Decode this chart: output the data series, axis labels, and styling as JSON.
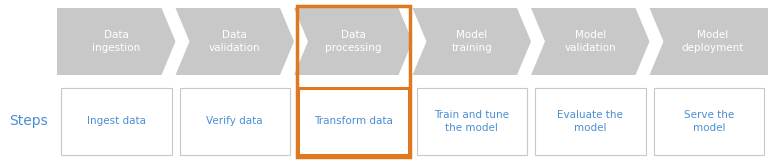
{
  "arrow_labels": [
    "Data\ningestion",
    "Data\nvalidation",
    "Data\nprocessing",
    "Model\ntraining",
    "Model\nvalidation",
    "Model\ndeployment"
  ],
  "box_labels": [
    "Ingest data",
    "Verify data",
    "Transform data",
    "Train and tune\nthe model",
    "Evaluate the\nmodel",
    "Serve the\nmodel"
  ],
  "arrow_color": "#c8c8c8",
  "arrow_text_color": "#ffffff",
  "box_text_color": "#4a8fd4",
  "box_border_color": "#c8c8c8",
  "steps_text_color": "#4a8fd4",
  "highlight_color": "#e07820",
  "highlight_index": 2,
  "bg_color": "#ffffff",
  "figsize": [
    7.71,
    1.64
  ],
  "dpi": 100
}
